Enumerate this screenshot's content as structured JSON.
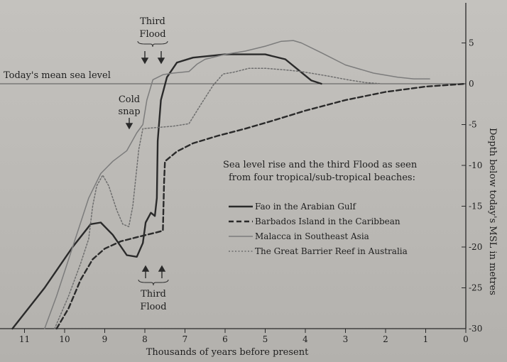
{
  "chart_data": {
    "type": "line",
    "xlabel": "Thousands of years before present",
    "ylabel": "Depth below today's MSL in metres",
    "x_ticks": [
      "11",
      "10",
      "9",
      "8",
      "7",
      "6",
      "5",
      "4",
      "3",
      "2",
      "1",
      "0"
    ],
    "y_ticks": [
      "5",
      "0",
      "-5",
      "-10",
      "-15",
      "-20",
      "-25",
      "-30"
    ],
    "xlim": [
      11.4,
      0
    ],
    "ylim": [
      -30,
      7
    ],
    "x_reversed": true,
    "grid": false,
    "legend_title": [
      "Sea level rise and the third Flood as seen",
      "from four tropical/sub-tropical beaches:"
    ],
    "legend_position": "center-right",
    "annotations": {
      "mean_sea_level": "Today's mean sea level",
      "cold_snap": [
        "Cold",
        "snap"
      ],
      "third_flood_top": [
        "Third",
        "Flood"
      ],
      "third_flood_bottom": [
        "Third",
        "Flood"
      ],
      "arrows": "↓↓"
    },
    "series": [
      {
        "name": "Fao in the Arabian Gulf",
        "style": "solid",
        "weight": "thick",
        "color": "#2a2a2a",
        "points": [
          [
            11.3,
            -30
          ],
          [
            10.5,
            -25
          ],
          [
            9.8,
            -20
          ],
          [
            9.35,
            -17.2
          ],
          [
            9.1,
            -17
          ],
          [
            8.8,
            -18.5
          ],
          [
            8.45,
            -21
          ],
          [
            8.2,
            -21.2
          ],
          [
            8.05,
            -19.5
          ],
          [
            7.98,
            -17
          ],
          [
            7.85,
            -15.8
          ],
          [
            7.75,
            -16.2
          ],
          [
            7.7,
            -14
          ],
          [
            7.68,
            -7
          ],
          [
            7.6,
            -2
          ],
          [
            7.45,
            0.8
          ],
          [
            7.2,
            2.6
          ],
          [
            6.8,
            3.2
          ],
          [
            6,
            3.6
          ],
          [
            5,
            3.6
          ],
          [
            4.5,
            3
          ],
          [
            4.2,
            1.8
          ],
          [
            3.85,
            0.4
          ],
          [
            3.6,
            0
          ]
        ]
      },
      {
        "name": "Barbados Island in the Caribbean",
        "style": "dashed",
        "weight": "thick",
        "color": "#2a2a2a",
        "points": [
          [
            10.2,
            -30
          ],
          [
            9.9,
            -27.5
          ],
          [
            9.6,
            -24
          ],
          [
            9.3,
            -21.5
          ],
          [
            9,
            -20.2
          ],
          [
            8.6,
            -19.3
          ],
          [
            8.2,
            -18.8
          ],
          [
            7.7,
            -18.2
          ],
          [
            7.55,
            -18
          ],
          [
            7.52,
            -12
          ],
          [
            7.5,
            -9.5
          ],
          [
            7.2,
            -8.3
          ],
          [
            6.8,
            -7.3
          ],
          [
            6.2,
            -6.4
          ],
          [
            5.5,
            -5.5
          ],
          [
            4.8,
            -4.5
          ],
          [
            4,
            -3.3
          ],
          [
            3,
            -2
          ],
          [
            2,
            -1
          ],
          [
            1,
            -0.35
          ],
          [
            0,
            0
          ]
        ]
      },
      {
        "name": "Malacca in Southeast Asia",
        "style": "solid",
        "weight": "thin",
        "color": "#7c7c7c",
        "points": [
          [
            10.5,
            -30
          ],
          [
            10.2,
            -26
          ],
          [
            9.8,
            -20
          ],
          [
            9.4,
            -14
          ],
          [
            9.1,
            -11
          ],
          [
            8.8,
            -9.5
          ],
          [
            8.45,
            -8.2
          ],
          [
            8.2,
            -6
          ],
          [
            8.05,
            -5
          ],
          [
            7.95,
            -2
          ],
          [
            7.8,
            0.5
          ],
          [
            7.55,
            1.1
          ],
          [
            7.3,
            1.3
          ],
          [
            6.9,
            1.5
          ],
          [
            6.7,
            2.4
          ],
          [
            6.5,
            3
          ],
          [
            6,
            3.6
          ],
          [
            5.5,
            4
          ],
          [
            5,
            4.6
          ],
          [
            4.6,
            5.2
          ],
          [
            4.3,
            5.3
          ],
          [
            4.1,
            5
          ],
          [
            3.6,
            3.8
          ],
          [
            3,
            2.3
          ],
          [
            2.3,
            1.3
          ],
          [
            1.7,
            0.8
          ],
          [
            1.3,
            0.6
          ],
          [
            0.9,
            0.6
          ]
        ]
      },
      {
        "name": "The Great Barrier Reef in Australia",
        "style": "dotted",
        "weight": "thin",
        "color": "#6e6e6e",
        "points": [
          [
            10.25,
            -30
          ],
          [
            9.9,
            -26
          ],
          [
            9.6,
            -22
          ],
          [
            9.4,
            -19
          ],
          [
            9.3,
            -15
          ],
          [
            9.2,
            -12.5
          ],
          [
            9.05,
            -11.2
          ],
          [
            8.9,
            -12.5
          ],
          [
            8.7,
            -15.5
          ],
          [
            8.55,
            -17.2
          ],
          [
            8.4,
            -17.5
          ],
          [
            8.3,
            -15
          ],
          [
            8.15,
            -8
          ],
          [
            8.05,
            -5.5
          ],
          [
            7.8,
            -5.4
          ],
          [
            7.3,
            -5.2
          ],
          [
            6.9,
            -4.9
          ],
          [
            6.6,
            -2.5
          ],
          [
            6.3,
            -0.2
          ],
          [
            6.05,
            1.2
          ],
          [
            5.8,
            1.4
          ],
          [
            5.4,
            1.9
          ],
          [
            5,
            1.9
          ],
          [
            4.5,
            1.7
          ],
          [
            4.1,
            1.5
          ],
          [
            3.5,
            1
          ],
          [
            2.9,
            0.45
          ],
          [
            2.5,
            0.15
          ],
          [
            2.1,
            0
          ]
        ]
      }
    ]
  }
}
